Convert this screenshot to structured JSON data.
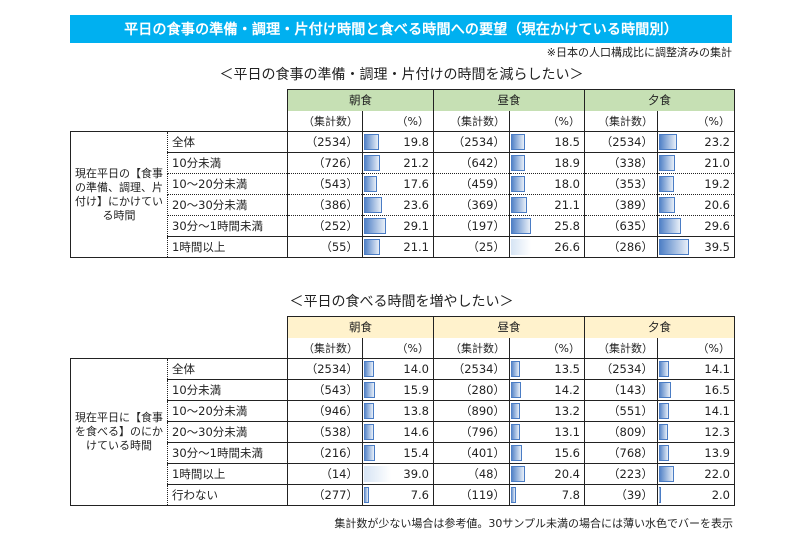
{
  "title": "平日の食事の準備・調理・片付け時間と食べる時間への要望（現在かけている時間別）",
  "note": "※日本の人口構成比に調整済みの集計",
  "footer": "集計数が少ない場合は参考値。30サンプル未満の場合には薄い水色でバーを表示",
  "colors": {
    "title_bar": "#00B0F0",
    "table1_header": "#C6E0B4",
    "table2_header": "#FFF2CC",
    "bar": "#4A7CC4",
    "bar_light": "#D6E4F4"
  },
  "table1": {
    "subtitle": "＜平日の食事の準備・調理・片付けの時間を減らしたい＞",
    "row_label": "現在平日の【食事の準備、調理、片付け】にかけている時間",
    "groups": [
      "朝食",
      "昼食",
      "夕食"
    ],
    "sub_headers": {
      "n": "（集計数）",
      "pct": "（%）"
    },
    "rows": [
      {
        "cat": "全体",
        "cells": [
          {
            "n": "（2534）",
            "pct": "19.8",
            "v": 19.8,
            "light": false
          },
          {
            "n": "（2534）",
            "pct": "18.5",
            "v": 18.5,
            "light": false
          },
          {
            "n": "（2534）",
            "pct": "23.2",
            "v": 23.2,
            "light": false
          }
        ]
      },
      {
        "cat": "10分未満",
        "cells": [
          {
            "n": "（726）",
            "pct": "21.2",
            "v": 21.2,
            "light": false
          },
          {
            "n": "（642）",
            "pct": "18.9",
            "v": 18.9,
            "light": false
          },
          {
            "n": "（338）",
            "pct": "21.0",
            "v": 21.0,
            "light": false
          }
        ]
      },
      {
        "cat": "10～20分未満",
        "cells": [
          {
            "n": "（543）",
            "pct": "17.6",
            "v": 17.6,
            "light": false
          },
          {
            "n": "（459）",
            "pct": "18.0",
            "v": 18.0,
            "light": false
          },
          {
            "n": "（353）",
            "pct": "19.2",
            "v": 19.2,
            "light": false
          }
        ]
      },
      {
        "cat": "20～30分未満",
        "cells": [
          {
            "n": "（386）",
            "pct": "23.6",
            "v": 23.6,
            "light": false
          },
          {
            "n": "（369）",
            "pct": "21.1",
            "v": 21.1,
            "light": false
          },
          {
            "n": "（389）",
            "pct": "20.6",
            "v": 20.6,
            "light": false
          }
        ]
      },
      {
        "cat": "30分～1時間未満",
        "cells": [
          {
            "n": "（252）",
            "pct": "29.1",
            "v": 29.1,
            "light": false
          },
          {
            "n": "（197）",
            "pct": "25.8",
            "v": 25.8,
            "light": false
          },
          {
            "n": "（635）",
            "pct": "29.6",
            "v": 29.6,
            "light": false
          }
        ]
      },
      {
        "cat": "1時間以上",
        "cells": [
          {
            "n": "（55）",
            "pct": "21.1",
            "v": 21.1,
            "light": false
          },
          {
            "n": "（25）",
            "pct": "26.6",
            "v": 26.6,
            "light": true
          },
          {
            "n": "（286）",
            "pct": "39.5",
            "v": 39.5,
            "light": false
          }
        ]
      }
    ]
  },
  "table2": {
    "subtitle": "＜平日の食べる時間を増やしたい＞",
    "row_label": "現在平日に【食事を食べる】のにかけている時間",
    "groups": [
      "朝食",
      "昼食",
      "夕食"
    ],
    "sub_headers": {
      "n": "（集計数）",
      "pct": "（%）"
    },
    "rows": [
      {
        "cat": "全体",
        "cells": [
          {
            "n": "（2534）",
            "pct": "14.0",
            "v": 14.0,
            "light": false
          },
          {
            "n": "（2534）",
            "pct": "13.5",
            "v": 13.5,
            "light": false
          },
          {
            "n": "（2534）",
            "pct": "14.1",
            "v": 14.1,
            "light": false
          }
        ]
      },
      {
        "cat": "10分未満",
        "cells": [
          {
            "n": "（543）",
            "pct": "15.9",
            "v": 15.9,
            "light": false
          },
          {
            "n": "（280）",
            "pct": "14.2",
            "v": 14.2,
            "light": false
          },
          {
            "n": "（143）",
            "pct": "16.5",
            "v": 16.5,
            "light": false
          }
        ]
      },
      {
        "cat": "10～20分未満",
        "cells": [
          {
            "n": "（946）",
            "pct": "13.8",
            "v": 13.8,
            "light": false
          },
          {
            "n": "（890）",
            "pct": "13.2",
            "v": 13.2,
            "light": false
          },
          {
            "n": "（551）",
            "pct": "14.1",
            "v": 14.1,
            "light": false
          }
        ]
      },
      {
        "cat": "20～30分未満",
        "cells": [
          {
            "n": "（538）",
            "pct": "14.6",
            "v": 14.6,
            "light": false
          },
          {
            "n": "（796）",
            "pct": "13.1",
            "v": 13.1,
            "light": false
          },
          {
            "n": "（809）",
            "pct": "12.3",
            "v": 12.3,
            "light": false
          }
        ]
      },
      {
        "cat": "30分～1時間未満",
        "cells": [
          {
            "n": "（216）",
            "pct": "15.4",
            "v": 15.4,
            "light": false
          },
          {
            "n": "（401）",
            "pct": "15.6",
            "v": 15.6,
            "light": false
          },
          {
            "n": "（768）",
            "pct": "13.9",
            "v": 13.9,
            "light": false
          }
        ]
      },
      {
        "cat": "1時間以上",
        "cells": [
          {
            "n": "（14）",
            "pct": "39.0",
            "v": 39.0,
            "light": true
          },
          {
            "n": "（48）",
            "pct": "20.4",
            "v": 20.4,
            "light": false
          },
          {
            "n": "（223）",
            "pct": "22.0",
            "v": 22.0,
            "light": false
          }
        ]
      },
      {
        "cat": "行わない",
        "cells": [
          {
            "n": "（277）",
            "pct": "7.6",
            "v": 7.6,
            "light": false
          },
          {
            "n": "（119）",
            "pct": "7.8",
            "v": 7.8,
            "light": false
          },
          {
            "n": "（39）",
            "pct": "2.0",
            "v": 2.0,
            "light": false
          }
        ]
      }
    ]
  }
}
